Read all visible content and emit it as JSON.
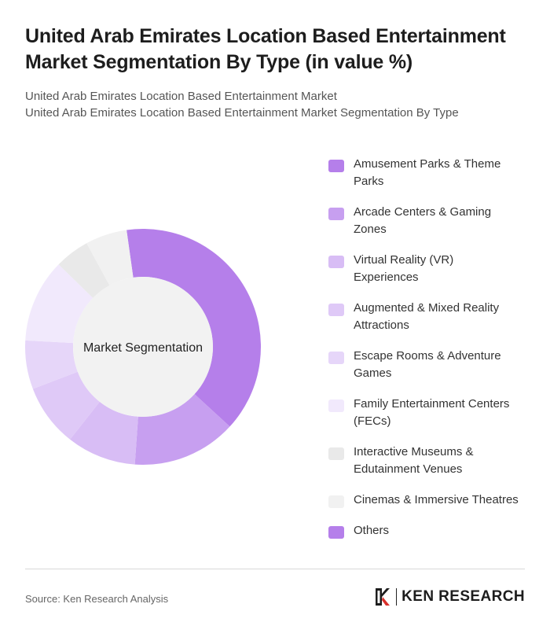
{
  "header": {
    "title": "United Arab Emirates Location Based Entertainment Market Segmentation By Type (in value %)",
    "subtitle_line1": "United Arab Emirates Location Based Entertainment Market",
    "subtitle_line2": "United Arab Emirates Location Based Entertainment Market Segmentation By Type"
  },
  "chart_data": {
    "type": "pie",
    "variant": "donut",
    "center_label": "Market Segmentation",
    "legend_position": "right",
    "categories": [
      "Amusement Parks & Theme Parks",
      "Arcade Centers & Gaming Zones",
      "Virtual Reality (VR) Experiences",
      "Augmented & Mixed Reality Attractions",
      "Escape Rooms & Adventure Games",
      "Family Entertainment Centers (FECs)",
      "Interactive Museums & Edutainment Venues",
      "Cinemas & Immersive Theatres",
      "Others"
    ],
    "values": [
      41,
      15,
      10,
      9,
      7,
      12,
      5,
      6,
      0
    ],
    "colors": [
      "#b57fea",
      "#c79ff0",
      "#d8bdf5",
      "#dfc9f7",
      "#e6d6f9",
      "#f1e9fc",
      "#e9e9e9",
      "#f1f1f1",
      "#b57fea"
    ]
  },
  "footer": {
    "source": "Source: Ken Research Analysis",
    "brand": "KEN RESEARCH"
  }
}
